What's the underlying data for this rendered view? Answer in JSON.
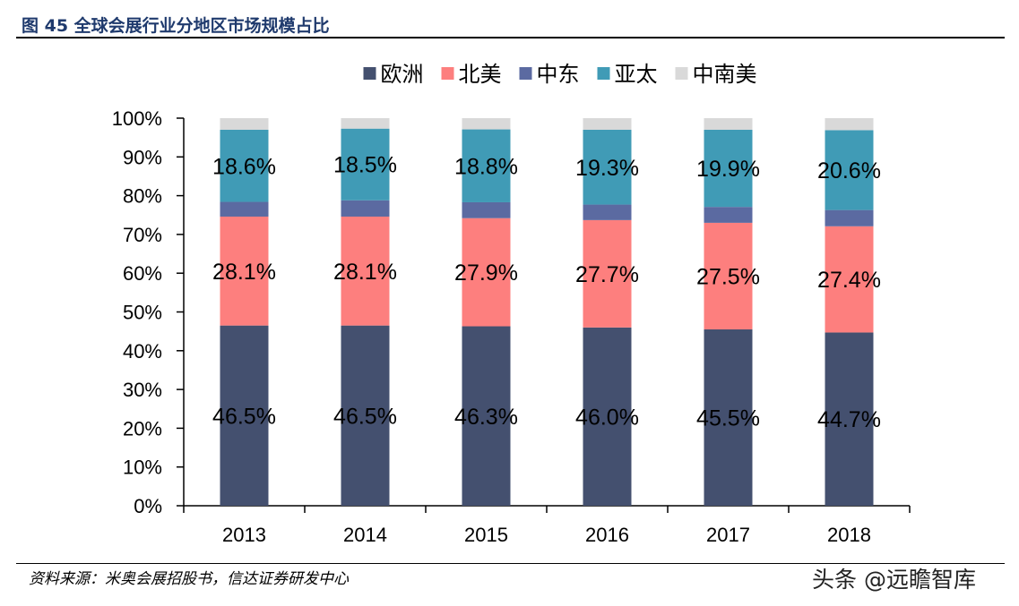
{
  "figure": {
    "title": "图 45  全球会展行业分地区市场规模占比",
    "source": "资料来源：米奥会展招股书，信达证券研发中心",
    "watermark": "头条 @远瞻智库"
  },
  "chart_data": {
    "type": "bar",
    "stacked": true,
    "categories": [
      "2013",
      "2014",
      "2015",
      "2016",
      "2017",
      "2018"
    ],
    "ylim": [
      0,
      100
    ],
    "yticks": [
      "0%",
      "10%",
      "20%",
      "30%",
      "40%",
      "50%",
      "60%",
      "70%",
      "80%",
      "90%",
      "100%"
    ],
    "legend_position": "top",
    "grid": false,
    "series": [
      {
        "name": "欧洲",
        "color": "#44506f",
        "values": [
          46.5,
          46.5,
          46.3,
          46.0,
          45.5,
          44.7
        ],
        "labels": [
          "46.5%",
          "46.5%",
          "46.3%",
          "46.0%",
          "45.5%",
          "44.7%"
        ]
      },
      {
        "name": "北美",
        "color": "#fd7f7e",
        "values": [
          28.1,
          28.1,
          27.9,
          27.7,
          27.5,
          27.4
        ],
        "labels": [
          "28.1%",
          "28.1%",
          "27.9%",
          "27.7%",
          "27.5%",
          "27.4%"
        ]
      },
      {
        "name": "中东",
        "color": "#5b6aa1",
        "values": [
          3.8,
          4.2,
          4.1,
          4.0,
          4.1,
          4.2
        ],
        "labels": null
      },
      {
        "name": "亚太",
        "color": "#409bb6",
        "values": [
          18.6,
          18.5,
          18.8,
          19.3,
          19.9,
          20.6
        ],
        "labels": [
          "18.6%",
          "18.5%",
          "18.8%",
          "19.3%",
          "19.9%",
          "20.6%"
        ]
      },
      {
        "name": "中南美",
        "color": "#d9d9d9",
        "values": [
          3.0,
          2.7,
          2.9,
          3.0,
          3.0,
          3.1
        ],
        "labels": null
      }
    ]
  }
}
